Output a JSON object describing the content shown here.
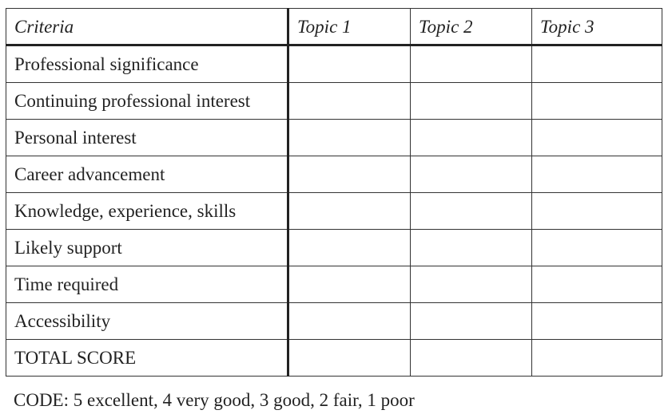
{
  "table": {
    "headers": [
      "Criteria",
      "Topic 1",
      "Topic 2",
      "Topic 3"
    ],
    "rows": [
      {
        "criterion": "Professional significance",
        "scores": [
          "",
          "",
          ""
        ]
      },
      {
        "criterion": "Continuing professional interest",
        "scores": [
          "",
          "",
          ""
        ]
      },
      {
        "criterion": "Personal interest",
        "scores": [
          "",
          "",
          ""
        ]
      },
      {
        "criterion": "Career advancement",
        "scores": [
          "",
          "",
          ""
        ]
      },
      {
        "criterion": "Knowledge, experience, skills",
        "scores": [
          "",
          "",
          ""
        ]
      },
      {
        "criterion": "Likely support",
        "scores": [
          "",
          "",
          ""
        ]
      },
      {
        "criterion": "Time required",
        "scores": [
          "",
          "",
          ""
        ]
      },
      {
        "criterion": "Accessibility",
        "scores": [
          "",
          "",
          ""
        ]
      },
      {
        "criterion": "TOTAL SCORE",
        "scores": [
          "",
          "",
          ""
        ]
      }
    ]
  },
  "code": "CODE: 5 excellent, 4 very good, 3 good, 2 fair, 1 poor"
}
